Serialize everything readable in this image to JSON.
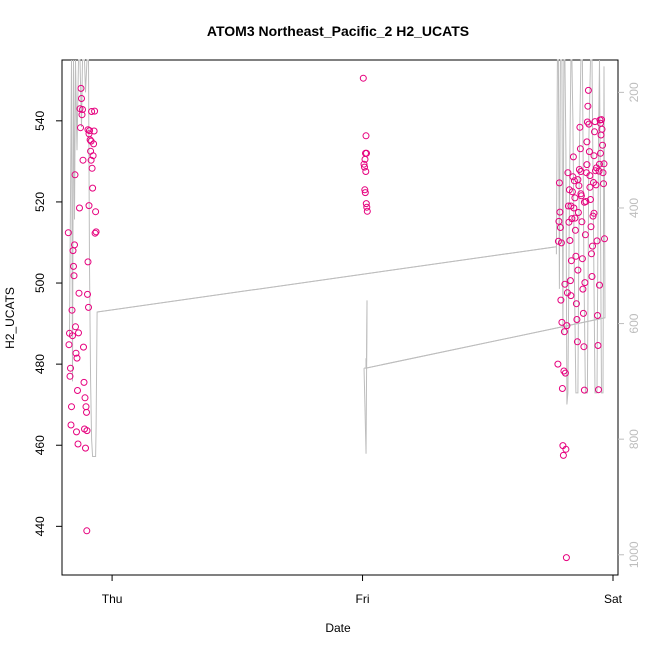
{
  "chart_data": {
    "type": "scatter",
    "title": "ATOM3 Northeast_Pacific_2 H2_UCATS",
    "xlabel": "Date",
    "ylabel": "H2_UCATS",
    "x_ticks": [
      "Thu",
      "Fri",
      "Sat"
    ],
    "xlim": [
      -0.2,
      2.02
    ],
    "ylim": [
      428,
      555
    ],
    "y_ticks": [
      440,
      460,
      480,
      500,
      520,
      540
    ],
    "y2_ticks": [
      200,
      400,
      600,
      800,
      1000
    ],
    "y2lim": [
      1035,
      144
    ],
    "point_color": "#e6007e",
    "line_color": "#bdbdbd",
    "series": [
      {
        "values": [
          {
            "x": -0.175,
            "y": 512.4
          },
          {
            "x": -0.172,
            "y": 484.8
          },
          {
            "x": -0.17,
            "y": 487.6
          },
          {
            "x": -0.168,
            "y": 477.0
          },
          {
            "x": -0.166,
            "y": 479.0
          },
          {
            "x": -0.164,
            "y": 465.0
          },
          {
            "x": -0.162,
            "y": 469.5
          },
          {
            "x": -0.16,
            "y": 493.3
          },
          {
            "x": -0.158,
            "y": 487.0
          },
          {
            "x": -0.156,
            "y": 508.0
          },
          {
            "x": -0.154,
            "y": 504.1
          },
          {
            "x": -0.152,
            "y": 501.8
          },
          {
            "x": -0.15,
            "y": 509.4
          },
          {
            "x": -0.148,
            "y": 526.7
          },
          {
            "x": -0.146,
            "y": 489.2
          },
          {
            "x": -0.144,
            "y": 482.7
          },
          {
            "x": -0.142,
            "y": 463.3
          },
          {
            "x": -0.14,
            "y": 481.5
          },
          {
            "x": -0.138,
            "y": 473.5
          },
          {
            "x": -0.136,
            "y": 460.3
          },
          {
            "x": -0.134,
            "y": 487.7
          },
          {
            "x": -0.132,
            "y": 497.5
          },
          {
            "x": -0.13,
            "y": 518.5
          },
          {
            "x": -0.128,
            "y": 543.0
          },
          {
            "x": -0.126,
            "y": 538.3
          },
          {
            "x": -0.124,
            "y": 548.0
          },
          {
            "x": -0.122,
            "y": 545.5
          },
          {
            "x": -0.12,
            "y": 541.5
          },
          {
            "x": -0.118,
            "y": 542.8
          },
          {
            "x": -0.116,
            "y": 530.3
          },
          {
            "x": -0.114,
            "y": 484.2
          },
          {
            "x": -0.112,
            "y": 475.5
          },
          {
            "x": -0.11,
            "y": 464.0
          },
          {
            "x": -0.108,
            "y": 471.7
          },
          {
            "x": -0.106,
            "y": 459.3
          },
          {
            "x": -0.104,
            "y": 469.5
          },
          {
            "x": -0.102,
            "y": 468.1
          },
          {
            "x": -0.1,
            "y": 463.6
          },
          {
            "x": -0.098,
            "y": 497.2
          },
          {
            "x": -0.096,
            "y": 505.2
          },
          {
            "x": -0.094,
            "y": 494.0
          },
          {
            "x": -0.092,
            "y": 519.1
          },
          {
            "x": -0.09,
            "y": 537.6
          },
          {
            "x": -0.088,
            "y": 535.3
          },
          {
            "x": -0.086,
            "y": 532.5
          },
          {
            "x": -0.084,
            "y": 530.3
          },
          {
            "x": -0.082,
            "y": 542.3
          },
          {
            "x": -0.08,
            "y": 528.3
          },
          {
            "x": -0.078,
            "y": 523.4
          },
          {
            "x": -0.076,
            "y": 531.4
          },
          {
            "x": -0.074,
            "y": 534.3
          },
          {
            "x": -0.072,
            "y": 537.5
          },
          {
            "x": -0.07,
            "y": 542.4
          },
          {
            "x": -0.068,
            "y": 512.3
          },
          {
            "x": -0.066,
            "y": 517.6
          },
          {
            "x": -0.064,
            "y": 512.6
          },
          {
            "x": -0.101,
            "y": 438.9
          },
          {
            "x": -0.096,
            "y": 537.8
          },
          {
            "x": -0.092,
            "y": 536.8
          },
          {
            "x": -0.084,
            "y": 535.0
          },
          {
            "x": 1.003,
            "y": 550.5
          },
          {
            "x": 1.006,
            "y": 529.3
          },
          {
            "x": 1.008,
            "y": 528.6
          },
          {
            "x": 1.01,
            "y": 530.5
          },
          {
            "x": 1.012,
            "y": 532.0
          },
          {
            "x": 1.014,
            "y": 536.3
          },
          {
            "x": 1.016,
            "y": 532.0
          },
          {
            "x": 1.013,
            "y": 527.5
          },
          {
            "x": 1.011,
            "y": 522.3
          },
          {
            "x": 1.015,
            "y": 519.6
          },
          {
            "x": 1.017,
            "y": 518.7
          },
          {
            "x": 1.019,
            "y": 517.7
          },
          {
            "x": 1.009,
            "y": 523.0
          },
          {
            "x": 1.78,
            "y": 480.0
          },
          {
            "x": 1.782,
            "y": 510.3
          },
          {
            "x": 1.784,
            "y": 515.2
          },
          {
            "x": 1.786,
            "y": 524.7
          },
          {
            "x": 1.788,
            "y": 517.5
          },
          {
            "x": 1.79,
            "y": 513.7
          },
          {
            "x": 1.792,
            "y": 495.8
          },
          {
            "x": 1.794,
            "y": 509.9
          },
          {
            "x": 1.796,
            "y": 490.3
          },
          {
            "x": 1.798,
            "y": 474.0
          },
          {
            "x": 1.8,
            "y": 459.9
          },
          {
            "x": 1.802,
            "y": 457.5
          },
          {
            "x": 1.804,
            "y": 478.3
          },
          {
            "x": 1.806,
            "y": 488.0
          },
          {
            "x": 1.808,
            "y": 499.7
          },
          {
            "x": 1.81,
            "y": 477.8
          },
          {
            "x": 1.812,
            "y": 459.0
          },
          {
            "x": 1.814,
            "y": 432.3
          },
          {
            "x": 1.816,
            "y": 489.5
          },
          {
            "x": 1.818,
            "y": 497.6
          },
          {
            "x": 1.82,
            "y": 527.2
          },
          {
            "x": 1.822,
            "y": 519.0
          },
          {
            "x": 1.824,
            "y": 515.0
          },
          {
            "x": 1.826,
            "y": 523.0
          },
          {
            "x": 1.828,
            "y": 510.5
          },
          {
            "x": 1.83,
            "y": 500.6
          },
          {
            "x": 1.832,
            "y": 496.9
          },
          {
            "x": 1.834,
            "y": 505.5
          },
          {
            "x": 1.836,
            "y": 515.9
          },
          {
            "x": 1.838,
            "y": 522.5
          },
          {
            "x": 1.84,
            "y": 526.2
          },
          {
            "x": 1.842,
            "y": 531.1
          },
          {
            "x": 1.844,
            "y": 518.5
          },
          {
            "x": 1.846,
            "y": 525.2
          },
          {
            "x": 1.848,
            "y": 521.0
          },
          {
            "x": 1.85,
            "y": 513.0
          },
          {
            "x": 1.852,
            "y": 506.6
          },
          {
            "x": 1.854,
            "y": 494.9
          },
          {
            "x": 1.856,
            "y": 491.0
          },
          {
            "x": 1.858,
            "y": 485.5
          },
          {
            "x": 1.86,
            "y": 503.2
          },
          {
            "x": 1.862,
            "y": 517.4
          },
          {
            "x": 1.864,
            "y": 524.0
          },
          {
            "x": 1.866,
            "y": 528.0
          },
          {
            "x": 1.868,
            "y": 538.4
          },
          {
            "x": 1.87,
            "y": 533.1
          },
          {
            "x": 1.872,
            "y": 527.5
          },
          {
            "x": 1.874,
            "y": 521.5
          },
          {
            "x": 1.876,
            "y": 515.1
          },
          {
            "x": 1.878,
            "y": 506.0
          },
          {
            "x": 1.88,
            "y": 498.5
          },
          {
            "x": 1.882,
            "y": 492.5
          },
          {
            "x": 1.884,
            "y": 484.3
          },
          {
            "x": 1.886,
            "y": 473.6
          },
          {
            "x": 1.888,
            "y": 500.1
          },
          {
            "x": 1.89,
            "y": 511.9
          },
          {
            "x": 1.892,
            "y": 520.1
          },
          {
            "x": 1.894,
            "y": 527.2
          },
          {
            "x": 1.896,
            "y": 534.8
          },
          {
            "x": 1.898,
            "y": 539.7
          },
          {
            "x": 1.9,
            "y": 543.6
          },
          {
            "x": 1.902,
            "y": 547.5
          },
          {
            "x": 1.904,
            "y": 539.2
          },
          {
            "x": 1.906,
            "y": 532.4
          },
          {
            "x": 1.908,
            "y": 526.5
          },
          {
            "x": 1.91,
            "y": 520.6
          },
          {
            "x": 1.912,
            "y": 513.9
          },
          {
            "x": 1.914,
            "y": 507.2
          },
          {
            "x": 1.916,
            "y": 501.6
          },
          {
            "x": 1.918,
            "y": 509.1
          },
          {
            "x": 1.92,
            "y": 516.5
          },
          {
            "x": 1.922,
            "y": 524.8
          },
          {
            "x": 1.924,
            "y": 531.4
          },
          {
            "x": 1.926,
            "y": 537.3
          },
          {
            "x": 1.928,
            "y": 539.8
          },
          {
            "x": 1.93,
            "y": 527.7
          },
          {
            "x": 1.932,
            "y": 524.2
          },
          {
            "x": 1.934,
            "y": 528.4
          },
          {
            "x": 1.936,
            "y": 510.4
          },
          {
            "x": 1.938,
            "y": 492.0
          },
          {
            "x": 1.94,
            "y": 484.6
          },
          {
            "x": 1.942,
            "y": 473.7
          },
          {
            "x": 1.944,
            "y": 527.6
          },
          {
            "x": 1.946,
            "y": 529.3
          },
          {
            "x": 1.948,
            "y": 540.2
          },
          {
            "x": 1.95,
            "y": 539.4
          },
          {
            "x": 1.952,
            "y": 536.5
          },
          {
            "x": 1.954,
            "y": 540.3
          },
          {
            "x": 1.956,
            "y": 537.9
          },
          {
            "x": 1.958,
            "y": 534.0
          },
          {
            "x": 1.96,
            "y": 527.2
          },
          {
            "x": 1.962,
            "y": 524.5
          },
          {
            "x": 1.964,
            "y": 529.4
          },
          {
            "x": 1.966,
            "y": 510.9
          },
          {
            "x": 1.946,
            "y": 499.5
          },
          {
            "x": 1.95,
            "y": 532.0
          },
          {
            "x": 1.832,
            "y": 519.0
          },
          {
            "x": 1.848,
            "y": 516.0
          },
          {
            "x": 1.86,
            "y": 525.5
          },
          {
            "x": 1.872,
            "y": 522.0
          },
          {
            "x": 1.886,
            "y": 519.9
          },
          {
            "x": 1.896,
            "y": 529.2
          },
          {
            "x": 1.908,
            "y": 523.6
          },
          {
            "x": 1.924,
            "y": 517.2
          }
        ]
      }
    ],
    "line_series": {
      "axis": "right",
      "values": [
        {
          "x": -0.17,
          "y": 620
        },
        {
          "x": -0.162,
          "y": 144
        },
        {
          "x": -0.158,
          "y": 700
        },
        {
          "x": -0.154,
          "y": 144
        },
        {
          "x": -0.15,
          "y": 420
        },
        {
          "x": -0.146,
          "y": 144
        },
        {
          "x": -0.14,
          "y": 300
        },
        {
          "x": -0.134,
          "y": 144
        },
        {
          "x": -0.128,
          "y": 144
        },
        {
          "x": -0.122,
          "y": 260
        },
        {
          "x": -0.118,
          "y": 144
        },
        {
          "x": -0.114,
          "y": 144
        },
        {
          "x": -0.11,
          "y": 144
        },
        {
          "x": -0.106,
          "y": 200
        },
        {
          "x": -0.1,
          "y": 144
        },
        {
          "x": -0.094,
          "y": 144
        },
        {
          "x": -0.09,
          "y": 500
        },
        {
          "x": -0.086,
          "y": 700
        },
        {
          "x": -0.082,
          "y": 800
        },
        {
          "x": -0.078,
          "y": 830
        },
        {
          "x": -0.066,
          "y": 830
        },
        {
          "x": -0.064,
          "y": 780
        },
        {
          "x": -0.06,
          "y": 580
        },
        {
          "x": 1.774,
          "y": 467
        },
        {
          "x": 1.774,
          "y": 480
        },
        {
          "x": 1.778,
          "y": 144
        },
        {
          "x": 1.782,
          "y": 144
        },
        {
          "x": 1.786,
          "y": 540
        },
        {
          "x": 1.79,
          "y": 144
        },
        {
          "x": 1.796,
          "y": 144
        },
        {
          "x": 1.8,
          "y": 620
        },
        {
          "x": 1.804,
          "y": 144
        },
        {
          "x": 1.808,
          "y": 144
        },
        {
          "x": 1.812,
          "y": 300
        },
        {
          "x": 1.816,
          "y": 740
        },
        {
          "x": 1.82,
          "y": 720
        },
        {
          "x": 1.824,
          "y": 500
        },
        {
          "x": 1.828,
          "y": 300
        },
        {
          "x": 1.832,
          "y": 144
        },
        {
          "x": 1.836,
          "y": 144
        },
        {
          "x": 1.84,
          "y": 250
        },
        {
          "x": 1.846,
          "y": 520
        },
        {
          "x": 1.852,
          "y": 720
        },
        {
          "x": 1.86,
          "y": 720
        },
        {
          "x": 1.866,
          "y": 300
        },
        {
          "x": 1.872,
          "y": 144
        },
        {
          "x": 1.878,
          "y": 144
        },
        {
          "x": 1.884,
          "y": 500
        },
        {
          "x": 1.89,
          "y": 720
        },
        {
          "x": 1.898,
          "y": 720
        },
        {
          "x": 1.904,
          "y": 280
        },
        {
          "x": 1.91,
          "y": 144
        },
        {
          "x": 1.916,
          "y": 144
        },
        {
          "x": 1.922,
          "y": 440
        },
        {
          "x": 1.928,
          "y": 720
        },
        {
          "x": 1.936,
          "y": 720
        },
        {
          "x": 1.942,
          "y": 280
        },
        {
          "x": 1.946,
          "y": 144
        },
        {
          "x": 1.95,
          "y": 420
        },
        {
          "x": 1.954,
          "y": 720
        },
        {
          "x": 1.96,
          "y": 720
        },
        {
          "x": 1.964,
          "y": 155
        },
        {
          "x": 1.968,
          "y": 590
        },
        {
          "x": 1.014,
          "y": 677
        },
        {
          "x": 1.014,
          "y": 660
        },
        {
          "x": 1.016,
          "y": 675
        },
        {
          "x": 1.018,
          "y": 560
        }
      ]
    },
    "connector_lines": [
      {
        "from": {
          "x": -0.06,
          "y": 580
        },
        "to": {
          "x": 1.774,
          "y": 467
        }
      },
      {
        "from": {
          "x": 1.968,
          "y": 590
        },
        "to": {
          "x": 1.014,
          "y": 677
        }
      },
      {
        "from": {
          "x": 1.014,
          "y": 677
        },
        "to": {
          "x": 1.006,
          "y": 677
        }
      },
      {
        "from": {
          "x": 1.006,
          "y": 677
        },
        "to": {
          "x": 1.014,
          "y": 825
        }
      },
      {
        "from": {
          "x": 1.014,
          "y": 825
        },
        "to": {
          "x": 1.018,
          "y": 560
        }
      }
    ]
  }
}
